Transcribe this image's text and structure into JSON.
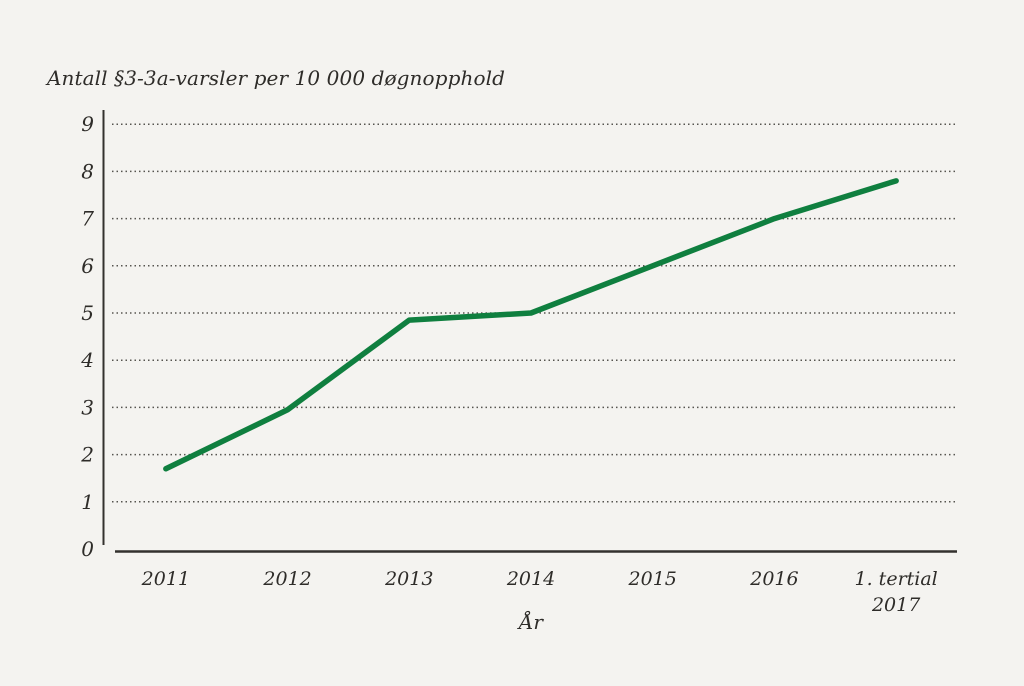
{
  "page": {
    "background_color": "#f4f3f0",
    "text_color": "#2e2c29",
    "axis_color": "#33312e",
    "gridline_color": "#56544f"
  },
  "chart_data": {
    "type": "line",
    "title": "Antall §3-3a-varsler per 10 000 døgnopphold",
    "xlabel": "År",
    "ylabel": "",
    "categories": [
      "2011",
      "2012",
      "2013",
      "2014",
      "2015",
      "2016",
      "1. tertial\n2017"
    ],
    "values": [
      1.7,
      2.95,
      4.85,
      5.0,
      6.0,
      7.0,
      7.8
    ],
    "ylim": [
      0,
      9
    ],
    "ytick_step": 1,
    "yticks": [
      0,
      1,
      2,
      3,
      4,
      5,
      6,
      7,
      8,
      9
    ],
    "grid": "dotted-horizontal",
    "legend": "none",
    "line_color": "#0f7f3f",
    "line_width": 5.5
  }
}
